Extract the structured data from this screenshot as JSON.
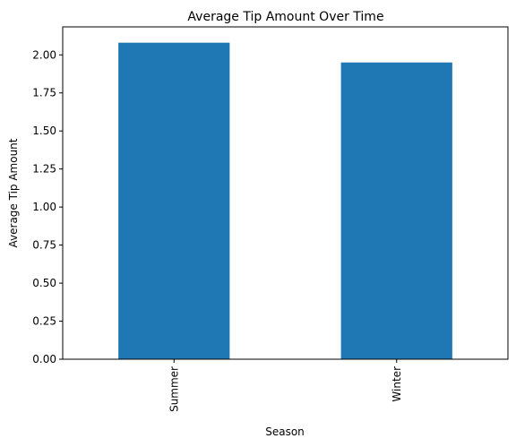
{
  "chart_data": {
    "type": "bar",
    "title": "Average Tip Amount Over Time",
    "xlabel": "Season",
    "ylabel": "Average Tip Amount",
    "categories": [
      "Summer",
      "Winter"
    ],
    "values": [
      2.08,
      1.95
    ],
    "ylim": [
      0,
      2.184
    ],
    "yticks": [
      0.0,
      0.25,
      0.5,
      0.75,
      1.0,
      1.25,
      1.5,
      1.75,
      2.0
    ],
    "ytick_labels": [
      "0.00",
      "0.25",
      "0.50",
      "0.75",
      "1.00",
      "1.25",
      "1.50",
      "1.75",
      "2.00"
    ],
    "bar_color": "#1f77b4",
    "grid": false,
    "legend": null
  }
}
